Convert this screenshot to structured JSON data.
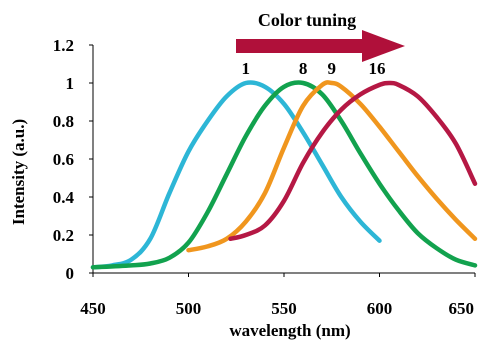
{
  "chart_data": {
    "type": "line",
    "title": "",
    "xlabel": "wavelength (nm)",
    "ylabel": "Intensity (a.u.)",
    "xlim": [
      450,
      650
    ],
    "ylim": [
      0,
      1.2
    ],
    "xticks": [
      "450",
      "500",
      "550",
      "600",
      "650"
    ],
    "yticks": [
      "0",
      "0.2",
      "0.4",
      "0.6",
      "0.8",
      "1",
      "1.2"
    ],
    "annotation": {
      "text": "Color tuning",
      "arrow_color": "#B0103A"
    },
    "series": [
      {
        "name": "1",
        "color": "#2DB6D6",
        "points": [
          [
            450,
            0.03
          ],
          [
            460,
            0.04
          ],
          [
            470,
            0.07
          ],
          [
            480,
            0.18
          ],
          [
            490,
            0.42
          ],
          [
            500,
            0.64
          ],
          [
            510,
            0.8
          ],
          [
            520,
            0.93
          ],
          [
            530,
            1.0
          ],
          [
            540,
            0.98
          ],
          [
            550,
            0.89
          ],
          [
            560,
            0.74
          ],
          [
            570,
            0.57
          ],
          [
            580,
            0.4
          ],
          [
            590,
            0.27
          ],
          [
            600,
            0.17
          ]
        ]
      },
      {
        "name": "8",
        "color": "#12A24E",
        "points": [
          [
            450,
            0.03
          ],
          [
            470,
            0.04
          ],
          [
            480,
            0.05
          ],
          [
            490,
            0.08
          ],
          [
            500,
            0.16
          ],
          [
            510,
            0.32
          ],
          [
            520,
            0.52
          ],
          [
            530,
            0.72
          ],
          [
            540,
            0.88
          ],
          [
            550,
            0.98
          ],
          [
            560,
            1.0
          ],
          [
            570,
            0.94
          ],
          [
            580,
            0.8
          ],
          [
            590,
            0.63
          ],
          [
            600,
            0.47
          ],
          [
            610,
            0.33
          ],
          [
            620,
            0.21
          ],
          [
            630,
            0.13
          ],
          [
            640,
            0.07
          ],
          [
            650,
            0.04
          ]
        ]
      },
      {
        "name": "9",
        "color": "#F0961E",
        "points": [
          [
            500,
            0.12
          ],
          [
            510,
            0.14
          ],
          [
            520,
            0.18
          ],
          [
            530,
            0.27
          ],
          [
            540,
            0.42
          ],
          [
            550,
            0.66
          ],
          [
            560,
            0.88
          ],
          [
            570,
            0.99
          ],
          [
            575,
            1.0
          ],
          [
            580,
            0.98
          ],
          [
            590,
            0.89
          ],
          [
            600,
            0.77
          ],
          [
            610,
            0.64
          ],
          [
            620,
            0.51
          ],
          [
            630,
            0.39
          ],
          [
            640,
            0.28
          ],
          [
            650,
            0.18
          ]
        ]
      },
      {
        "name": "16",
        "color": "#B51844",
        "points": [
          [
            522,
            0.18
          ],
          [
            530,
            0.2
          ],
          [
            540,
            0.25
          ],
          [
            550,
            0.38
          ],
          [
            560,
            0.58
          ],
          [
            570,
            0.74
          ],
          [
            580,
            0.86
          ],
          [
            590,
            0.94
          ],
          [
            600,
            0.99
          ],
          [
            605,
            1.0
          ],
          [
            610,
            0.99
          ],
          [
            620,
            0.93
          ],
          [
            630,
            0.82
          ],
          [
            640,
            0.68
          ],
          [
            650,
            0.47
          ]
        ]
      }
    ]
  }
}
